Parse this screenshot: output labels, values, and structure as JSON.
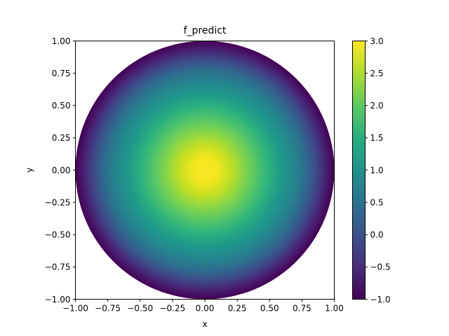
{
  "chart_data": {
    "type": "heatmap",
    "title": "f_predict",
    "xlabel": "x",
    "ylabel": "y",
    "xlim": [
      -1.0,
      1.0
    ],
    "ylim": [
      -1.0,
      1.0
    ],
    "x_ticks": [
      "−1.00",
      "−0.75",
      "−0.50",
      "−0.25",
      "0.00",
      "0.25",
      "0.50",
      "0.75",
      "1.00"
    ],
    "y_ticks": [
      "−1.00",
      "−0.75",
      "−0.50",
      "−0.25",
      "0.00",
      "0.25",
      "0.50",
      "0.75",
      "1.00"
    ],
    "colorbar": {
      "colormap": "viridis",
      "range": [
        -1.0,
        3.0
      ],
      "ticks": [
        "−1.0",
        "−0.5",
        "0.0",
        "0.5",
        "1.0",
        "1.5",
        "2.0",
        "2.5",
        "3.0"
      ]
    },
    "field": {
      "domain": "unit disk x² + y² ≤ 1",
      "center_value": 3.0,
      "boundary_value": -1.0,
      "profile": "radially symmetric, decreasing from center to boundary"
    },
    "grid": false,
    "legend": "none"
  }
}
